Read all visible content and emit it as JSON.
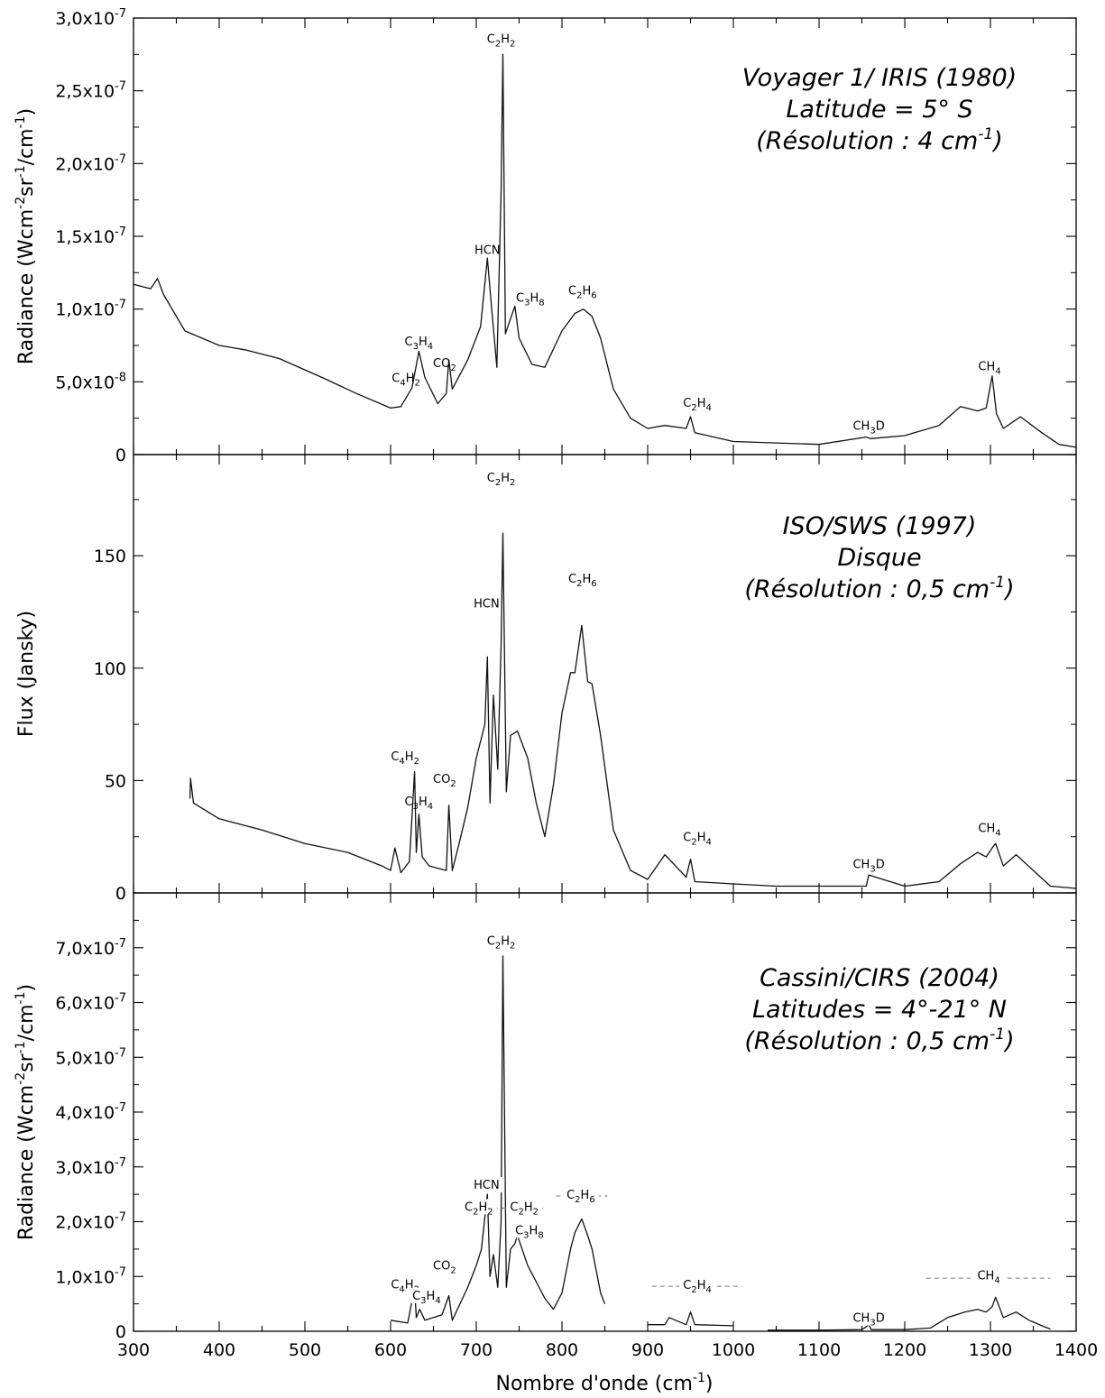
{
  "x_axis_label": "Nombre d'onde (cm",
  "x_axis_label_sup": "-1",
  "x_axis_label_end": ")",
  "chart_data": [
    {
      "type": "line",
      "panel": "top",
      "title_lines": [
        "Voyager 1/ IRIS (1980)",
        "Latitude = 5° S",
        "(Résolution : 4 cm",
        "-1",
        ")"
      ],
      "ylabel": "Radiance (Wcm-2sr-1/cm-1)",
      "xlim": [
        300,
        1400
      ],
      "ylim": [
        0,
        3e-07
      ],
      "yticks": [
        0,
        5e-08,
        1e-07,
        1.5e-07,
        2e-07,
        2.5e-07,
        3e-07
      ],
      "ytick_labels": [
        "0",
        "5,0x10-8",
        "1,0x10-7",
        "1,5x10-7",
        "2,0x10-7",
        "2,5x10-7",
        "3,0x10-7"
      ],
      "series": [
        {
          "x": [
            300,
            320,
            328,
            335,
            360,
            400,
            430,
            470,
            520,
            560,
            600,
            612,
            625,
            633,
            640,
            655,
            665,
            668,
            672,
            690,
            705,
            713,
            718,
            724,
            729,
            731,
            734,
            738,
            745,
            750,
            765,
            780,
            800,
            815,
            825,
            835,
            845,
            860,
            880,
            900,
            920,
            945,
            950,
            955,
            1000,
            1050,
            1100,
            1155,
            1160,
            1200,
            1240,
            1265,
            1285,
            1295,
            1302,
            1307,
            1315,
            1335,
            1360,
            1380,
            1400
          ],
          "y": [
            1.17e-07,
            1.14e-07,
            1.21e-07,
            1.1e-07,
            8.5e-08,
            7.5e-08,
            7.2e-08,
            6.6e-08,
            5.3e-08,
            4.2e-08,
            3.2e-08,
            3.3e-08,
            4.6e-08,
            7.1e-08,
            5.3e-08,
            3.5e-08,
            4.2e-08,
            6.5e-08,
            4.5e-08,
            6.5e-08,
            8.8e-08,
            1.35e-07,
            1e-07,
            6e-08,
            1.8e-07,
            2.75e-07,
            8.3e-08,
            9e-08,
            1.02e-07,
            8e-08,
            6.2e-08,
            6e-08,
            8.5e-08,
            9.7e-08,
            1e-07,
            9.5e-08,
            8e-08,
            4.5e-08,
            2.5e-08,
            1.8e-08,
            2e-08,
            1.8e-08,
            2.6e-08,
            1.5e-08,
            9e-09,
            8e-09,
            7e-09,
            1.2e-08,
            1.1e-08,
            1.3e-08,
            2e-08,
            3.3e-08,
            3e-08,
            3.2e-08,
            5.4e-08,
            2.8e-08,
            1.8e-08,
            2.6e-08,
            1.5e-08,
            7e-09,
            5e-09
          ]
        }
      ],
      "annotations": [
        {
          "label": "C2H2",
          "x": 729,
          "y": 2.83e-07
        },
        {
          "label": "HCN",
          "x": 713,
          "y": 1.38e-07
        },
        {
          "label": "C3H8",
          "x": 763,
          "y": 1.05e-07
        },
        {
          "label": "C2H6",
          "x": 824,
          "y": 1.1e-07
        },
        {
          "label": "C3H4",
          "x": 633,
          "y": 7.5e-08
        },
        {
          "label": "CO2",
          "x": 663,
          "y": 6e-08
        },
        {
          "label": "C4H2",
          "x": 618,
          "y": 5e-08
        },
        {
          "label": "C2H4",
          "x": 958,
          "y": 3.3e-08
        },
        {
          "label": "CH3D",
          "x": 1158,
          "y": 1.7e-08
        },
        {
          "label": "CH4",
          "x": 1299,
          "y": 5.8e-08
        }
      ]
    },
    {
      "type": "line",
      "panel": "middle",
      "title_lines": [
        "ISO/SWS (1997)",
        "Disque",
        "(Résolution : 0,5 cm",
        "-1",
        ")"
      ],
      "ylabel": "Flux (Jansky)",
      "xlim": [
        300,
        1400
      ],
      "ylim": [
        0,
        195
      ],
      "yticks": [
        0,
        50,
        100,
        150
      ],
      "ytick_labels": [
        "0",
        "50",
        "100",
        "150"
      ],
      "series": [
        {
          "x": [
            366,
            366.5,
            370,
            400,
            450,
            500,
            550,
            590,
            600,
            605,
            612,
            622,
            628,
            630,
            633,
            637,
            645,
            665,
            668,
            672,
            680,
            690,
            700,
            710,
            713,
            716,
            720,
            725,
            729,
            731,
            735,
            740,
            748,
            760,
            770,
            780,
            790,
            800,
            810,
            815,
            823,
            830,
            835,
            845,
            860,
            880,
            900,
            920,
            945,
            950,
            955,
            1000,
            1050,
            1100,
            1155,
            1158,
            1200,
            1240,
            1265,
            1285,
            1295,
            1302,
            1306,
            1315,
            1330,
            1350,
            1370,
            1400
          ],
          "y": [
            42,
            51,
            40,
            33,
            28,
            22,
            18,
            12,
            10,
            20,
            9,
            14,
            54,
            18,
            35,
            16,
            12,
            10,
            39,
            10,
            22,
            38,
            60,
            75,
            105,
            40,
            88,
            55,
            110,
            160,
            45,
            70,
            72,
            60,
            40,
            25,
            48,
            80,
            98,
            98,
            119,
            94,
            93,
            70,
            28,
            10,
            6,
            17,
            7,
            15,
            5,
            4,
            3,
            3,
            3,
            8,
            3,
            5,
            13,
            18,
            16,
            20,
            22,
            12,
            17,
            10,
            3,
            2
          ]
        }
      ],
      "annotations": [
        {
          "label": "C2H2",
          "x": 729,
          "y": 183
        },
        {
          "label": "HCN",
          "x": 712,
          "y": 127
        },
        {
          "label": "C2H6",
          "x": 824,
          "y": 138
        },
        {
          "label": "C4H2",
          "x": 617,
          "y": 59
        },
        {
          "label": "CO2",
          "x": 663,
          "y": 49
        },
        {
          "label": "C3H4",
          "x": 633,
          "y": 39
        },
        {
          "label": "C2H4",
          "x": 958,
          "y": 23
        },
        {
          "label": "CH3D",
          "x": 1158,
          "y": 11
        },
        {
          "label": "CH4",
          "x": 1299,
          "y": 27
        }
      ]
    },
    {
      "type": "line",
      "panel": "bottom",
      "title_lines": [
        "Cassini/CIRS (2004)",
        "Latitudes = 4°-21° N",
        "(Résolution : 0,5 cm",
        "-1",
        ")"
      ],
      "ylabel": "Radiance (Wcm-2sr-1/cm-1)",
      "xlim": [
        300,
        1400
      ],
      "ylim": [
        0,
        8e-07
      ],
      "yticks": [
        0,
        1e-07,
        2e-07,
        3e-07,
        4e-07,
        5e-07,
        6e-07,
        7e-07
      ],
      "ytick_labels": [
        "0",
        "1,0x10-7",
        "2,0x10-7",
        "3,0x10-7",
        "4,0x10-7",
        "5,0x10-7",
        "6,0x10-7",
        "7,0x10-7"
      ],
      "series": [
        {
          "x": [
            600,
            620,
            628,
            630,
            634,
            640,
            660,
            668,
            672,
            690,
            700,
            706,
            713,
            716,
            720,
            725,
            729,
            731,
            735,
            740,
            745,
            748,
            760,
            780,
            790,
            800,
            810,
            815,
            823,
            830,
            835,
            845,
            850
          ],
          "y": [
            2e-08,
            1.5e-08,
            8e-08,
            2.5e-08,
            4e-08,
            2e-08,
            3e-08,
            6.5e-08,
            2e-08,
            8e-08,
            1.2e-07,
            1.5e-07,
            2.5e-07,
            1e-07,
            1.4e-07,
            8e-08,
            2e-07,
            6.85e-07,
            8e-08,
            1.5e-07,
            1.6e-07,
            1.75e-07,
            1.2e-07,
            6e-08,
            4e-08,
            7e-08,
            1.5e-07,
            1.8e-07,
            2.05e-07,
            1.75e-07,
            1.5e-07,
            7e-08,
            5e-08
          ]
        },
        {
          "x": [
            900,
            920,
            925,
            945,
            950,
            955,
            1000
          ],
          "y": [
            1.2e-08,
            1.2e-08,
            2.5e-08,
            1.2e-08,
            3.5e-08,
            1.2e-08,
            1e-08
          ]
        },
        {
          "x": [
            1040,
            1100,
            1150,
            1155,
            1158,
            1161,
            1200,
            1230,
            1250,
            1270,
            1285,
            1295,
            1302,
            1306,
            1315,
            1330,
            1345,
            1360,
            1370
          ],
          "y": [
            2e-09,
            2e-09,
            3e-09,
            8e-09,
            1.2e-08,
            3e-09,
            3e-09,
            6e-09,
            2.5e-08,
            3.5e-08,
            4e-08,
            3.5e-08,
            4.5e-08,
            6.2e-08,
            2.5e-08,
            3.5e-08,
            2e-08,
            1e-08,
            4e-09
          ]
        }
      ],
      "annotations": [
        {
          "label": "C2H2",
          "x": 729,
          "y": 7.05e-07
        },
        {
          "label": "HCN",
          "x": 712,
          "y": 2.6e-07
        },
        {
          "label": "C2H2",
          "x": 703,
          "y": 2.2e-07
        },
        {
          "label": "C2H2",
          "x": 756,
          "y": 2.2e-07
        },
        {
          "label": "C2H6",
          "x": 822,
          "y": 2.42e-07
        },
        {
          "label": "C3H8",
          "x": 762,
          "y": 1.77e-07
        },
        {
          "label": "CO2",
          "x": 663,
          "y": 1.13e-07
        },
        {
          "label": "C4H2",
          "x": 617,
          "y": 7.8e-08
        },
        {
          "label": "C3H4",
          "x": 642,
          "y": 5.8e-08
        },
        {
          "label": "C2H4",
          "x": 958,
          "y": 7.7e-08
        },
        {
          "label": "CH3D",
          "x": 1158,
          "y": 1.7e-08
        },
        {
          "label": "CH4",
          "x": 1298,
          "y": 9.5e-08
        }
      ],
      "range_bands": [
        {
          "x1": 682,
          "x2": 778,
          "y": 2.25e-07
        },
        {
          "x1": 793,
          "x2": 853,
          "y": 2.47e-07
        },
        {
          "x1": 905,
          "x2": 1010,
          "y": 8.2e-08
        },
        {
          "x1": 1225,
          "x2": 1370,
          "y": 9.7e-08
        }
      ]
    }
  ]
}
